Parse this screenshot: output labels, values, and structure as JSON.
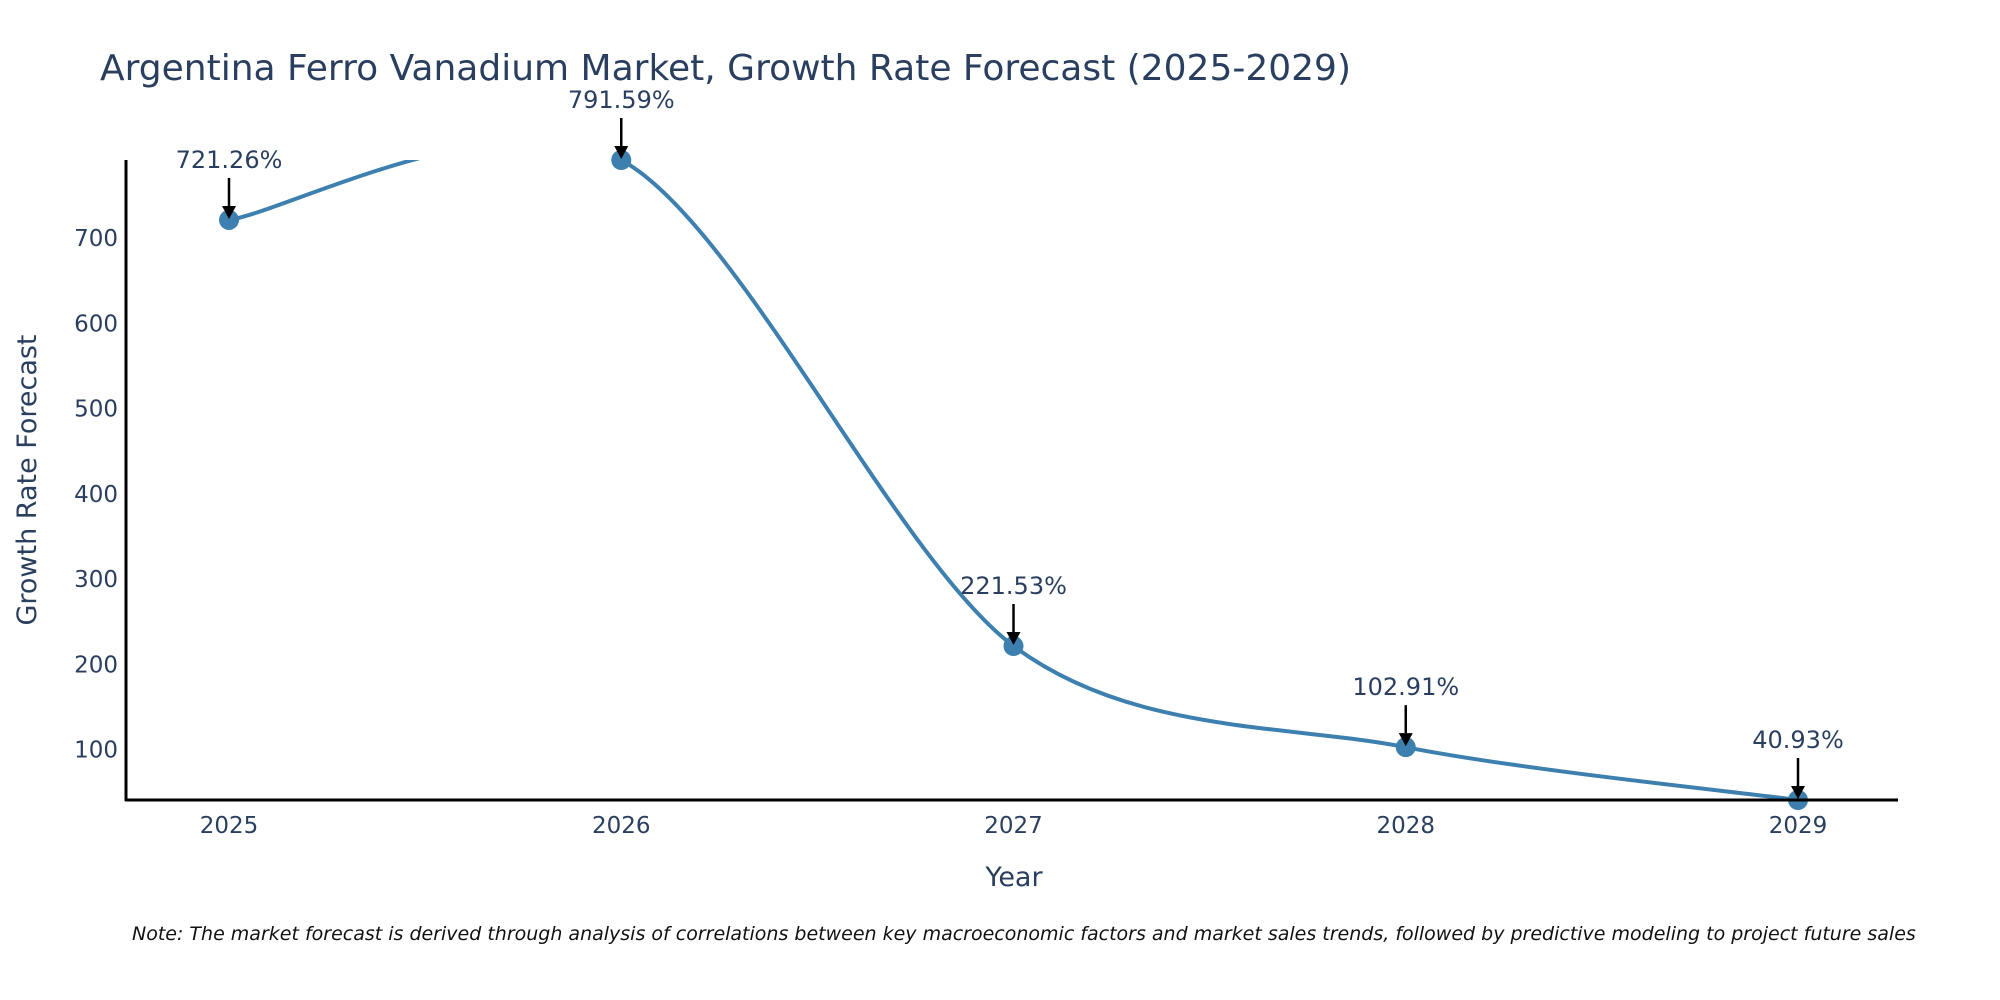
{
  "chart_data": {
    "type": "line",
    "title": "Argentina Ferro Vanadium Market, Growth Rate Forecast (2025-2029)",
    "xlabel": "Year",
    "ylabel": "Growth Rate Forecast",
    "categories": [
      "2025",
      "2026",
      "2027",
      "2028",
      "2029"
    ],
    "values": [
      721.26,
      791.59,
      221.53,
      102.91,
      40.93
    ],
    "data_labels": [
      "721.26%",
      "791.59%",
      "221.53%",
      "102.91%",
      "40.93%"
    ],
    "y_ticks": [
      100,
      200,
      300,
      400,
      500,
      600,
      700
    ],
    "ylim": [
      40.93,
      791.59
    ],
    "line_color": "#3d80b0",
    "marker_color": "#3d80b0",
    "grid": false,
    "note": "Note: The market forecast is derived through analysis of correlations between key macroeconomic factors and market sales trends, followed by predictive modeling to project future sales"
  }
}
